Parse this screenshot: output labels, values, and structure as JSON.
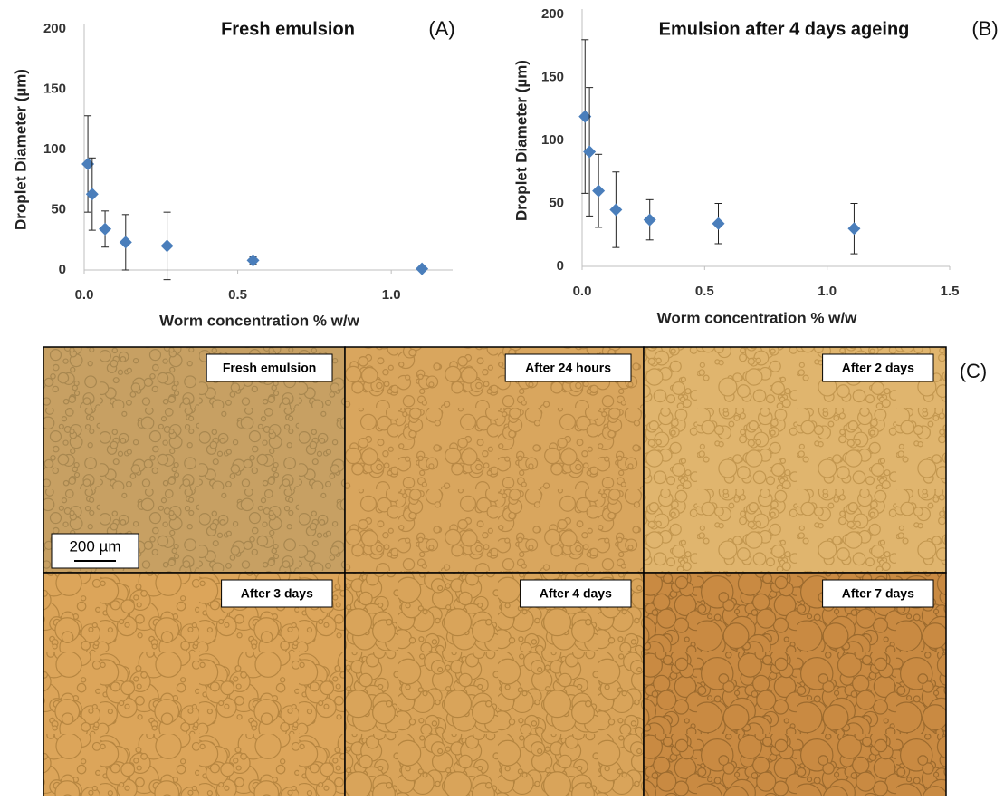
{
  "chart_data": [
    {
      "type": "scatter",
      "title": "Fresh emulsion",
      "panel_label": "(A)",
      "x_label": "Worm concentration % w/w",
      "y_label": "Droplet Diameter (µm)",
      "x": [
        0.012,
        0.026,
        0.068,
        0.135,
        0.27,
        0.55,
        1.1
      ],
      "values": [
        88,
        63,
        34,
        23,
        20,
        8,
        1
      ],
      "errors": [
        40,
        30,
        15,
        23,
        28,
        3,
        0
      ],
      "color": "#4a7ebb",
      "xlim": [
        0,
        1.2
      ],
      "xticks": [
        {
          "value": 0,
          "label": "0.0"
        },
        {
          "value": 0.5,
          "label": "0.5"
        },
        {
          "value": 1,
          "label": "1.0"
        }
      ],
      "ylim": [
        0,
        200
      ],
      "yticks": [
        0,
        50,
        100,
        150,
        200
      ],
      "grid": false
    },
    {
      "type": "scatter",
      "title": "Emulsion after 4 days ageing",
      "panel_label": "(B)",
      "x_label": "Worm concentration % w/w",
      "y_label": "Droplet Diameter (µm)",
      "x": [
        0.012,
        0.03,
        0.067,
        0.138,
        0.276,
        0.556,
        1.11
      ],
      "values": [
        119,
        91,
        60,
        45,
        37,
        34,
        30
      ],
      "errors": [
        61,
        51,
        29,
        30,
        16,
        16,
        20
      ],
      "color": "#4a7ebb",
      "xlim": [
        0,
        1.5
      ],
      "xticks": [
        {
          "value": 0,
          "label": "0.0"
        },
        {
          "value": 0.5,
          "label": "0.5"
        },
        {
          "value": 1,
          "label": "1.0"
        },
        {
          "value": 1.5,
          "label": "1.5"
        }
      ],
      "ylim": [
        0,
        200
      ],
      "yticks": [
        0,
        50,
        100,
        150,
        200
      ],
      "grid": false
    }
  ],
  "micrographs": {
    "panel_label": "(C)",
    "scale_bar": "200 µm",
    "captions": [
      "Fresh emulsion",
      "After 24 hours",
      "After 2 days",
      "After 3 days",
      "After 4 days",
      "After 7 days"
    ]
  }
}
